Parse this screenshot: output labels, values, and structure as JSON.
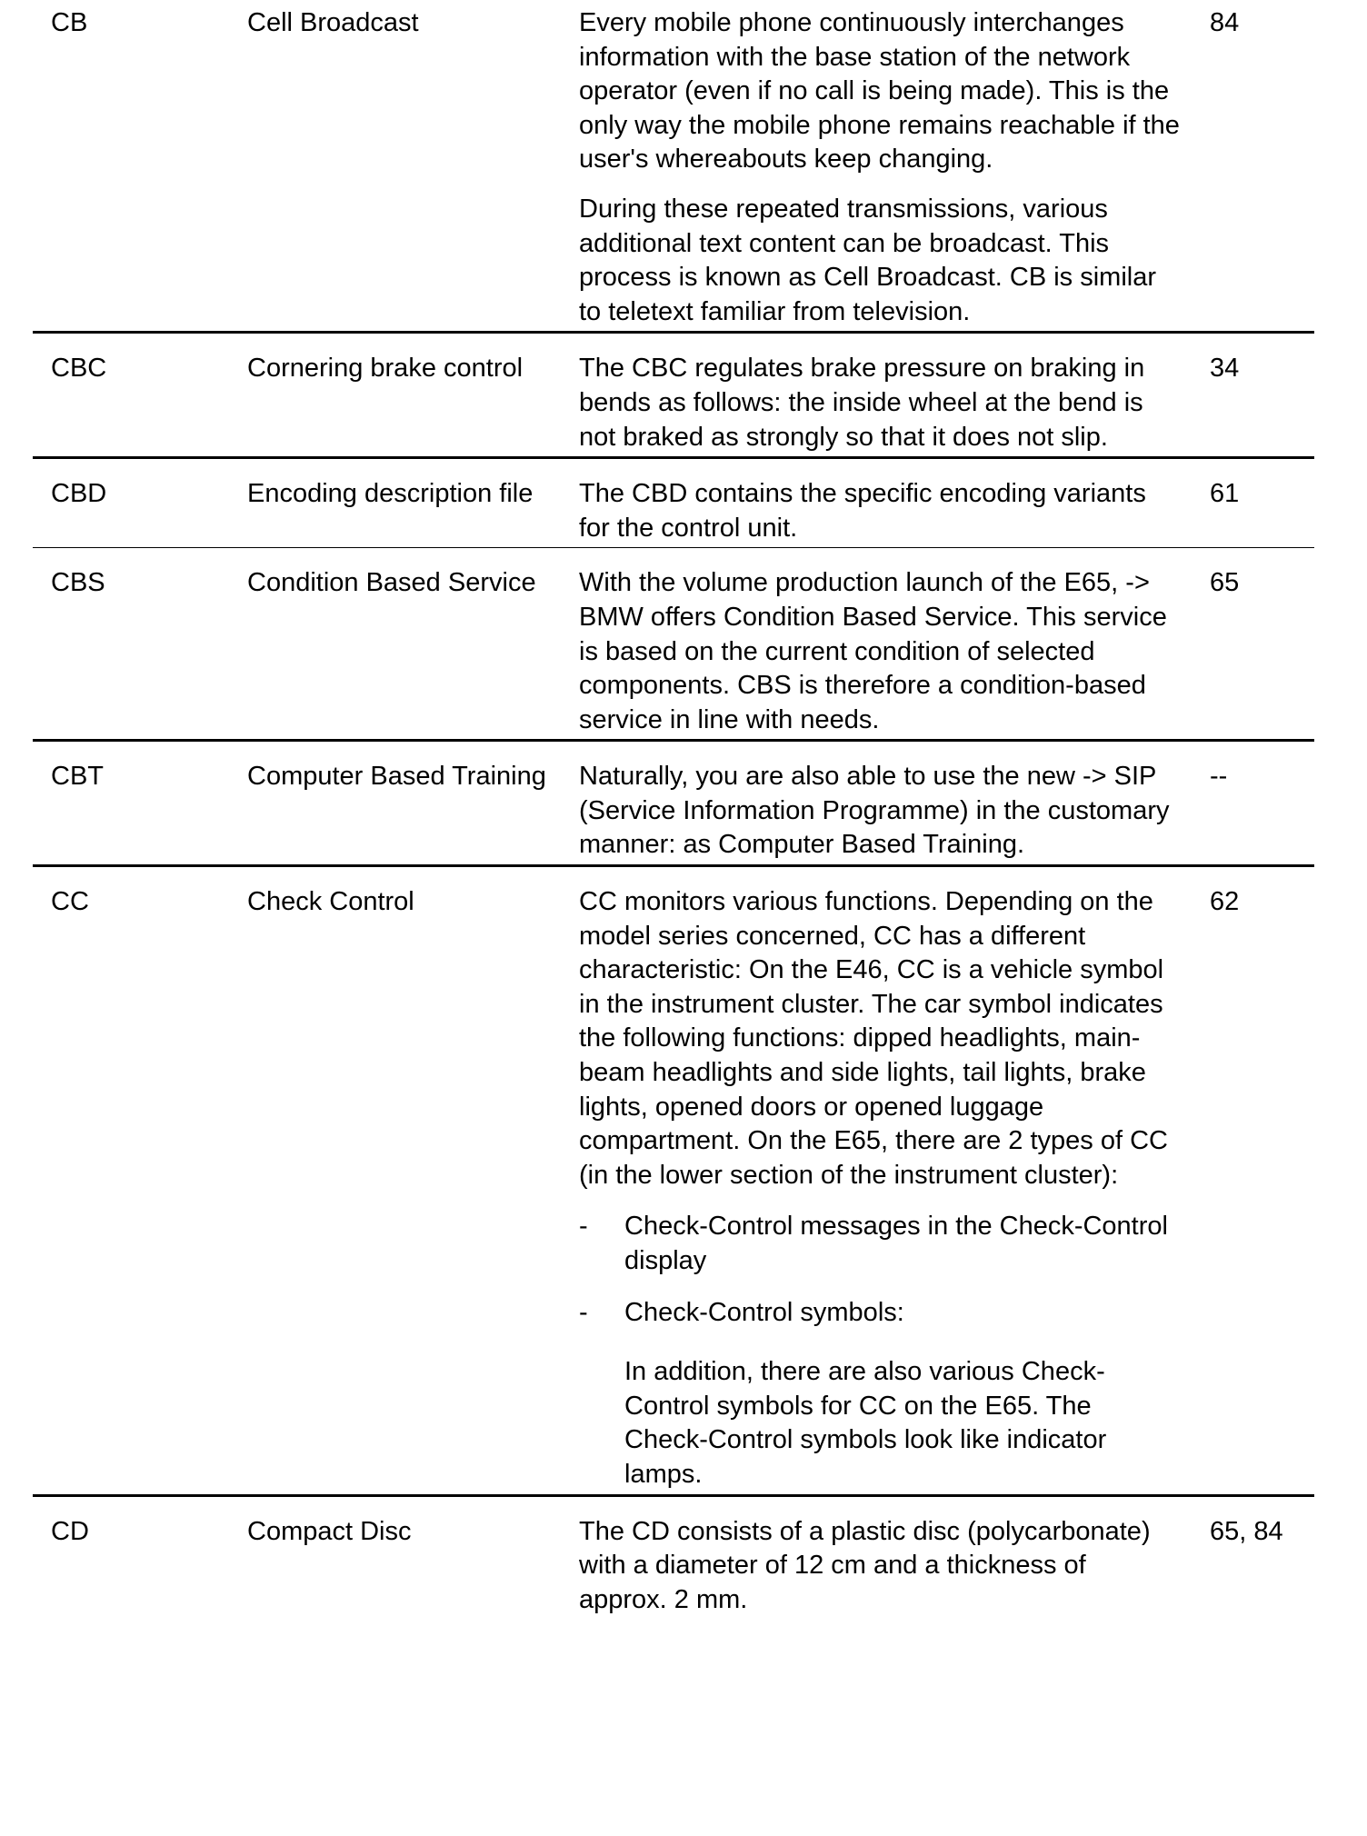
{
  "rows": [
    {
      "abbr": "CB",
      "term": "Cell Broadcast",
      "page": "84",
      "paragraphs": [
        "Every mobile phone continuously interchanges information with the base station of the network operator (even if no call is being made). This is the only way the mobile phone remains reachable if the user's whereabouts keep changing.",
        "During these repeated transmissions, various additional text content can be broadcast. This process is known as Cell Broadcast. CB is similar to teletext familiar from television."
      ]
    },
    {
      "abbr": "CBC",
      "term": "Cornering brake control",
      "page": "34",
      "paragraphs": [
        "The CBC regulates brake pressure on braking in bends as follows: the inside wheel at the bend is not braked as strongly so that it does not slip."
      ]
    },
    {
      "abbr": "CBD",
      "term": "Encoding description file",
      "page": "61",
      "paragraphs": [
        "The CBD contains the specific encoding variants for the control unit."
      ]
    },
    {
      "abbr": "CBS",
      "term": "Condition Based Service",
      "page": "65",
      "paragraphs": [
        "With the volume production launch of the E65, -> BMW offers Condition Based Service. This service is based on the current condition of selected components. CBS is therefore a condition-based service in line with needs."
      ]
    },
    {
      "abbr": "CBT",
      "term": "Computer Based Training",
      "page": "--",
      "paragraphs": [
        "Naturally, you are also able to use the new -> SIP (Service Information Programme) in the customary manner: as Computer Based Training."
      ]
    },
    {
      "abbr": "CC",
      "term": "Check Control",
      "page": "62",
      "paragraphs": [
        "CC monitors various functions. Depending on the model series concerned, CC has a different characteristic: On the E46, CC is a vehicle symbol in the instrument cluster. The car symbol indicates the following functions: dipped headlights, main-beam headlights and side lights, tail lights, brake lights, opened doors or opened luggage compartment. On the E65, there are 2 types of CC (in the lower section of the instrument cluster):"
      ],
      "bullets": [
        {
          "dash": "-",
          "text": "Check-Control messages in the Check-Control display"
        },
        {
          "dash": "-",
          "text": "Check-Control symbols:"
        }
      ],
      "note": "In addition, there are also various Check-Control symbols for CC on the E65. The Check-Control symbols look like indicator lamps."
    },
    {
      "abbr": "CD",
      "term": "Compact Disc",
      "page": "65, 84",
      "paragraphs": [
        "The CD consists of a plastic disc (polycarbonate) with a diameter of 12 cm and a thickness of approx. 2 mm."
      ]
    }
  ]
}
